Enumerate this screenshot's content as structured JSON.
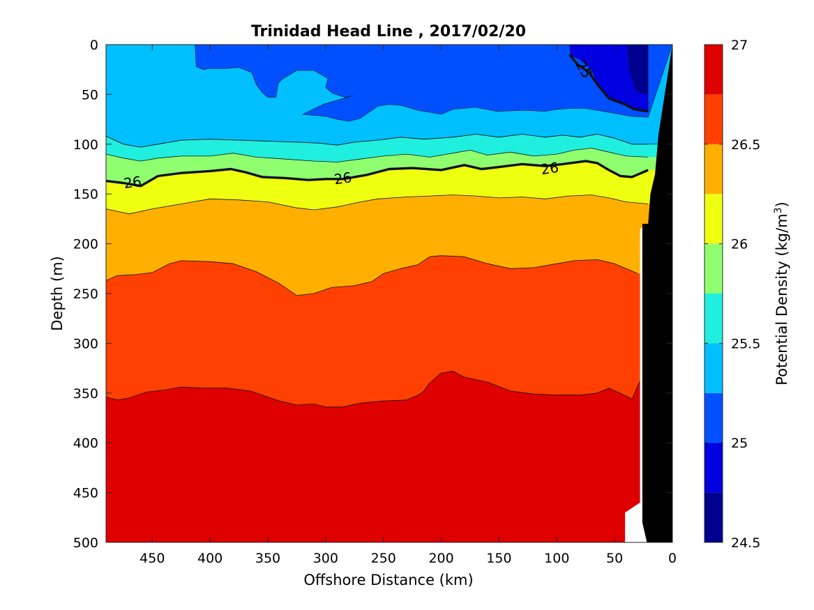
{
  "chart_data": {
    "type": "filled-contour",
    "title": "Trinidad Head Line , 2017/02/20",
    "xlabel": "Offshore Distance (km)",
    "ylabel": "Depth (m)",
    "xlim": [
      490,
      0
    ],
    "ylim": [
      0,
      500
    ],
    "x_ticks": [
      "450",
      "400",
      "350",
      "300",
      "250",
      "200",
      "150",
      "100",
      "50",
      "0"
    ],
    "y_ticks": [
      "0",
      "50",
      "100",
      "150",
      "200",
      "250",
      "300",
      "350",
      "400",
      "450",
      "500"
    ],
    "colorbar": {
      "label": "Potential Density (kg/m",
      "label_superscript": "3",
      "label_close": ")",
      "range": [
        24.5,
        27
      ],
      "ticks": [
        "24.5",
        "25",
        "25.5",
        "26",
        "26.5",
        "27"
      ],
      "levels": [
        {
          "from": 24.5,
          "to": 24.75,
          "color": "#00008f"
        },
        {
          "from": 24.75,
          "to": 25.0,
          "color": "#0000e0"
        },
        {
          "from": 25.0,
          "to": 25.25,
          "color": "#0050ff"
        },
        {
          "from": 25.25,
          "to": 25.5,
          "color": "#00bfff"
        },
        {
          "from": 25.5,
          "to": 25.75,
          "color": "#20efdf"
        },
        {
          "from": 25.75,
          "to": 26.0,
          "color": "#8fff70"
        },
        {
          "from": 26.0,
          "to": 26.25,
          "color": "#efff10"
        },
        {
          "from": 26.25,
          "to": 26.5,
          "color": "#ffaf00"
        },
        {
          "from": 26.5,
          "to": 26.75,
          "color": "#ff4000"
        },
        {
          "from": 26.75,
          "to": 27.0,
          "color": "#df0000"
        }
      ]
    },
    "contour_labels": [
      {
        "text": "26",
        "x": 467,
        "y": 139
      },
      {
        "text": "26",
        "x": 285,
        "y": 135
      },
      {
        "text": "26",
        "x": 106,
        "y": 125
      },
      {
        "text": "25",
        "x": 77,
        "y": 25
      }
    ],
    "bottom_color": "#000000",
    "bands": [
      {
        "color": "#00bfff",
        "top": [
          [
            490,
            0
          ],
          [
            0,
            0
          ]
        ]
      },
      {
        "color": "#0050ff",
        "top": [
          [
            413,
            0
          ],
          [
            0,
            0
          ]
        ],
        "bottom": [
          [
            413,
            0
          ],
          [
            412,
            22
          ],
          [
            406,
            25
          ],
          [
            400,
            24
          ],
          [
            387,
            24
          ],
          [
            375,
            23
          ],
          [
            364,
            28
          ],
          [
            360,
            40
          ],
          [
            355,
            48
          ],
          [
            350,
            53
          ],
          [
            343,
            53
          ],
          [
            341,
            39
          ],
          [
            338,
            35
          ],
          [
            325,
            26
          ],
          [
            310,
            26
          ],
          [
            298,
            34
          ],
          [
            300,
            43
          ],
          [
            294,
            49
          ],
          [
            283,
            53
          ],
          [
            276,
            51
          ],
          [
            302,
            60
          ],
          [
            320,
            70
          ],
          [
            300,
            72
          ],
          [
            290,
            75
          ],
          [
            280,
            77
          ],
          [
            270,
            74
          ],
          [
            255,
            62
          ],
          [
            245,
            60
          ],
          [
            235,
            61
          ],
          [
            220,
            66
          ],
          [
            200,
            70
          ],
          [
            190,
            65
          ],
          [
            170,
            63
          ],
          [
            152,
            67
          ],
          [
            127,
            66
          ],
          [
            110,
            67
          ],
          [
            100,
            65
          ],
          [
            88,
            64
          ],
          [
            75,
            64
          ],
          [
            55,
            68
          ],
          [
            36,
            72
          ],
          [
            21,
            73
          ]
        ]
      },
      {
        "color": "#0000e0",
        "top": [
          [
            89,
            0
          ],
          [
            21,
            0
          ]
        ],
        "bottom": [
          [
            89,
            0
          ],
          [
            88,
            11
          ],
          [
            80,
            15
          ],
          [
            70,
            25
          ],
          [
            65,
            40
          ],
          [
            55,
            54
          ],
          [
            41,
            60
          ],
          [
            33,
            65
          ],
          [
            21,
            67
          ]
        ]
      },
      {
        "color": "#00008f",
        "top": [
          [
            39,
            0
          ],
          [
            21,
            0
          ]
        ],
        "bottom": [
          [
            39,
            0
          ],
          [
            37,
            25
          ],
          [
            32,
            45
          ],
          [
            28,
            48
          ],
          [
            21,
            50
          ]
        ]
      }
    ],
    "contour_lines": [
      {
        "level": 25.5,
        "points": [
          [
            490,
            92
          ],
          [
            475,
            100
          ],
          [
            460,
            103
          ],
          [
            445,
            100
          ],
          [
            425,
            96
          ],
          [
            400,
            95
          ],
          [
            375,
            96
          ],
          [
            350,
            97
          ],
          [
            325,
            98
          ],
          [
            305,
            99
          ],
          [
            290,
            101
          ],
          [
            275,
            98
          ],
          [
            255,
            96
          ],
          [
            235,
            93
          ],
          [
            215,
            95
          ],
          [
            190,
            93
          ],
          [
            170,
            90
          ],
          [
            150,
            93
          ],
          [
            130,
            90
          ],
          [
            110,
            93
          ],
          [
            95,
            91
          ],
          [
            80,
            93
          ],
          [
            65,
            90
          ],
          [
            50,
            94
          ],
          [
            35,
            100
          ],
          [
            21,
            100
          ]
        ]
      },
      {
        "level": 25.75,
        "points": [
          [
            490,
            110
          ],
          [
            475,
            114
          ],
          [
            460,
            117
          ],
          [
            445,
            114
          ],
          [
            425,
            112
          ],
          [
            400,
            112
          ],
          [
            380,
            109
          ],
          [
            360,
            113
          ],
          [
            335,
            115
          ],
          [
            310,
            117
          ],
          [
            290,
            118
          ],
          [
            270,
            115
          ],
          [
            250,
            112
          ],
          [
            230,
            110
          ],
          [
            210,
            113
          ],
          [
            190,
            109
          ],
          [
            175,
            106
          ],
          [
            160,
            111
          ],
          [
            140,
            108
          ],
          [
            120,
            112
          ],
          [
            100,
            110
          ],
          [
            85,
            106
          ],
          [
            70,
            104
          ],
          [
            55,
            108
          ],
          [
            40,
            112
          ],
          [
            21,
            113
          ]
        ]
      },
      {
        "level": 26.25,
        "points": [
          [
            490,
            165
          ],
          [
            470,
            170
          ],
          [
            450,
            165
          ],
          [
            425,
            160
          ],
          [
            400,
            155
          ],
          [
            375,
            156
          ],
          [
            350,
            158
          ],
          [
            325,
            164
          ],
          [
            310,
            166
          ],
          [
            290,
            163
          ],
          [
            270,
            158
          ],
          [
            255,
            155
          ],
          [
            230,
            153
          ],
          [
            210,
            152
          ],
          [
            190,
            151
          ],
          [
            170,
            152
          ],
          [
            150,
            154
          ],
          [
            130,
            153
          ],
          [
            110,
            155
          ],
          [
            90,
            152
          ],
          [
            70,
            151
          ],
          [
            55,
            154
          ],
          [
            40,
            158
          ],
          [
            21,
            160
          ]
        ]
      },
      {
        "level": 26.5,
        "points": [
          [
            490,
            237
          ],
          [
            480,
            232
          ],
          [
            465,
            231
          ],
          [
            450,
            229
          ],
          [
            435,
            220
          ],
          [
            425,
            217
          ],
          [
            400,
            218
          ],
          [
            380,
            220
          ],
          [
            360,
            228
          ],
          [
            340,
            240
          ],
          [
            325,
            252
          ],
          [
            310,
            250
          ],
          [
            295,
            244
          ],
          [
            275,
            242
          ],
          [
            260,
            238
          ],
          [
            250,
            230
          ],
          [
            235,
            225
          ],
          [
            220,
            221
          ],
          [
            210,
            213
          ],
          [
            200,
            212
          ],
          [
            180,
            213
          ],
          [
            160,
            220
          ],
          [
            140,
            225
          ],
          [
            120,
            224
          ],
          [
            100,
            220
          ],
          [
            85,
            217
          ],
          [
            65,
            216
          ],
          [
            50,
            220
          ],
          [
            30,
            230
          ]
        ]
      },
      {
        "level": 26.75,
        "points": [
          [
            490,
            354
          ],
          [
            480,
            357
          ],
          [
            470,
            355
          ],
          [
            455,
            349
          ],
          [
            440,
            347
          ],
          [
            425,
            344
          ],
          [
            405,
            345
          ],
          [
            385,
            345
          ],
          [
            365,
            348
          ],
          [
            340,
            358
          ],
          [
            325,
            362
          ],
          [
            310,
            361
          ],
          [
            300,
            364
          ],
          [
            285,
            364
          ],
          [
            270,
            360
          ],
          [
            250,
            358
          ],
          [
            230,
            357
          ],
          [
            220,
            352
          ],
          [
            215,
            348
          ],
          [
            210,
            340
          ],
          [
            200,
            330
          ],
          [
            190,
            328
          ],
          [
            180,
            334
          ],
          [
            160,
            339
          ],
          [
            140,
            348
          ],
          [
            120,
            351
          ],
          [
            100,
            352
          ],
          [
            80,
            352
          ],
          [
            65,
            350
          ],
          [
            55,
            345
          ],
          [
            40,
            353
          ],
          [
            35,
            356
          ],
          [
            28,
            338
          ],
          [
            21,
            356
          ]
        ]
      },
      {
        "level": 26.0,
        "bold": true,
        "points": [
          [
            490,
            137
          ],
          [
            475,
            139
          ],
          [
            460,
            142
          ],
          [
            445,
            132
          ],
          [
            425,
            129
          ],
          [
            400,
            127
          ],
          [
            382,
            125
          ],
          [
            370,
            128
          ],
          [
            355,
            133
          ],
          [
            335,
            134
          ],
          [
            315,
            136
          ],
          [
            300,
            135
          ],
          [
            285,
            135
          ],
          [
            265,
            131
          ],
          [
            245,
            125
          ],
          [
            225,
            124
          ],
          [
            200,
            126
          ],
          [
            180,
            121
          ],
          [
            165,
            125
          ],
          [
            150,
            123
          ],
          [
            130,
            120
          ],
          [
            110,
            122
          ],
          [
            95,
            120
          ],
          [
            75,
            117
          ],
          [
            65,
            119
          ],
          [
            55,
            126
          ],
          [
            45,
            132
          ],
          [
            35,
            133
          ],
          [
            21,
            126
          ]
        ]
      },
      {
        "level": 25.0,
        "bold": true,
        "points": [
          [
            89,
            10
          ],
          [
            82,
            20
          ],
          [
            72,
            28
          ],
          [
            65,
            40
          ],
          [
            55,
            54
          ],
          [
            41,
            60
          ],
          [
            33,
            65
          ],
          [
            21,
            67
          ]
        ]
      }
    ],
    "white_gap": [
      [
        21,
        0
      ],
      [
        14,
        0
      ],
      [
        21,
        0
      ],
      [
        21,
        480
      ],
      [
        20,
        500
      ],
      [
        41,
        500
      ],
      [
        41,
        470
      ],
      [
        28,
        460
      ],
      [
        28,
        185
      ],
      [
        21,
        180
      ]
    ],
    "bottom_polygon": [
      [
        0,
        0
      ],
      [
        0,
        500
      ],
      [
        22,
        500
      ],
      [
        26,
        480
      ],
      [
        26,
        180
      ],
      [
        21,
        180
      ],
      [
        19,
        150
      ],
      [
        15,
        130
      ],
      [
        12,
        90
      ],
      [
        8,
        60
      ],
      [
        4,
        30
      ]
    ]
  }
}
